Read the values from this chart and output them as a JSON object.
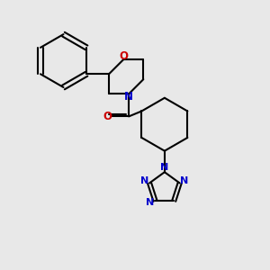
{
  "background_color": "#e8e8e8",
  "bond_color": "#000000",
  "n_color": "#0000cc",
  "o_color": "#cc0000",
  "line_width": 1.5,
  "figsize": [
    3.0,
    3.0
  ],
  "dpi": 100,
  "xlim": [
    0,
    10
  ],
  "ylim": [
    0,
    10
  ]
}
